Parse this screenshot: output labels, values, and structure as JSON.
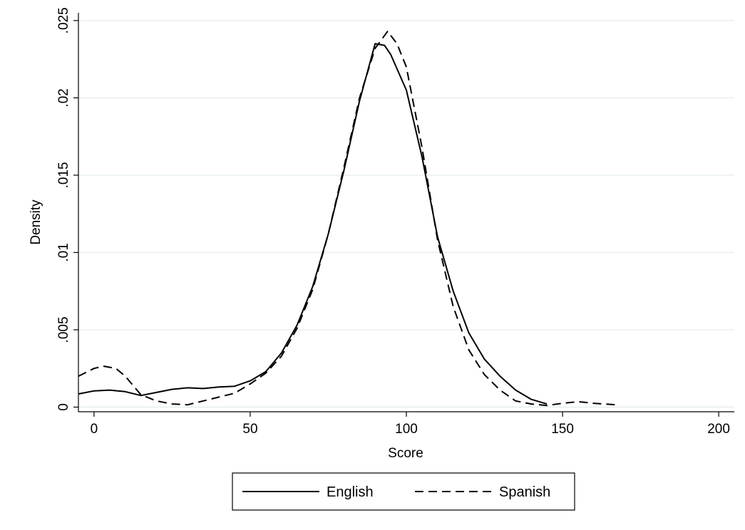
{
  "chart_data": {
    "type": "line",
    "title": "",
    "xlabel": "Score",
    "ylabel": "Density",
    "xlim": [
      -5,
      205
    ],
    "ylim": [
      -0.0003,
      0.0255
    ],
    "x_ticks": [
      {
        "value": 0,
        "label": "0"
      },
      {
        "value": 50,
        "label": "50"
      },
      {
        "value": 100,
        "label": "100"
      },
      {
        "value": 150,
        "label": "150"
      },
      {
        "value": 200,
        "label": "200"
      }
    ],
    "y_ticks": [
      {
        "value": 0,
        "label": "0"
      },
      {
        "value": 0.005,
        "label": ".005"
      },
      {
        "value": 0.01,
        "label": ".01"
      },
      {
        "value": 0.015,
        "label": ".015"
      },
      {
        "value": 0.02,
        "label": ".02"
      },
      {
        "value": 0.025,
        "label": ".025"
      }
    ],
    "grid": true,
    "legend_position": "bottom",
    "series": [
      {
        "name": "English",
        "style": "solid",
        "color": "#000000",
        "points": [
          [
            -5,
            0.00085
          ],
          [
            0,
            0.00105
          ],
          [
            5,
            0.0011
          ],
          [
            10,
            0.001
          ],
          [
            15,
            0.00075
          ],
          [
            20,
            0.00095
          ],
          [
            25,
            0.00115
          ],
          [
            30,
            0.00125
          ],
          [
            35,
            0.0012
          ],
          [
            40,
            0.0013
          ],
          [
            45,
            0.00135
          ],
          [
            50,
            0.0017
          ],
          [
            55,
            0.0023
          ],
          [
            60,
            0.0035
          ],
          [
            65,
            0.0053
          ],
          [
            70,
            0.0078
          ],
          [
            75,
            0.0112
          ],
          [
            80,
            0.0153
          ],
          [
            85,
            0.0198
          ],
          [
            90,
            0.0235
          ],
          [
            93,
            0.0234
          ],
          [
            95,
            0.0228
          ],
          [
            100,
            0.0205
          ],
          [
            105,
            0.0162
          ],
          [
            110,
            0.011
          ],
          [
            115,
            0.0075
          ],
          [
            120,
            0.0048
          ],
          [
            125,
            0.0031
          ],
          [
            130,
            0.002
          ],
          [
            135,
            0.0011
          ],
          [
            140,
            0.0005
          ],
          [
            145,
            0.0002
          ]
        ]
      },
      {
        "name": "Spanish",
        "style": "dashed",
        "color": "#000000",
        "points": [
          [
            -5,
            0.002
          ],
          [
            0,
            0.0025
          ],
          [
            3,
            0.00265
          ],
          [
            7,
            0.0025
          ],
          [
            10,
            0.002
          ],
          [
            15,
            0.0008
          ],
          [
            20,
            0.0004
          ],
          [
            25,
            0.0002
          ],
          [
            30,
            0.00015
          ],
          [
            35,
            0.0004
          ],
          [
            40,
            0.00065
          ],
          [
            45,
            0.0009
          ],
          [
            50,
            0.0015
          ],
          [
            55,
            0.0022
          ],
          [
            60,
            0.0033
          ],
          [
            65,
            0.0051
          ],
          [
            70,
            0.0076
          ],
          [
            75,
            0.0112
          ],
          [
            80,
            0.0155
          ],
          [
            85,
            0.02
          ],
          [
            90,
            0.0232
          ],
          [
            94,
            0.0243
          ],
          [
            97,
            0.0235
          ],
          [
            100,
            0.022
          ],
          [
            105,
            0.0168
          ],
          [
            110,
            0.0108
          ],
          [
            115,
            0.0065
          ],
          [
            120,
            0.0037
          ],
          [
            125,
            0.0021
          ],
          [
            130,
            0.0011
          ],
          [
            135,
            0.0004
          ],
          [
            140,
            0.0002
          ],
          [
            145,
            0.0001
          ],
          [
            150,
            0.00025
          ],
          [
            155,
            0.00035
          ],
          [
            160,
            0.00025
          ],
          [
            167,
            0.00015
          ]
        ]
      }
    ]
  }
}
